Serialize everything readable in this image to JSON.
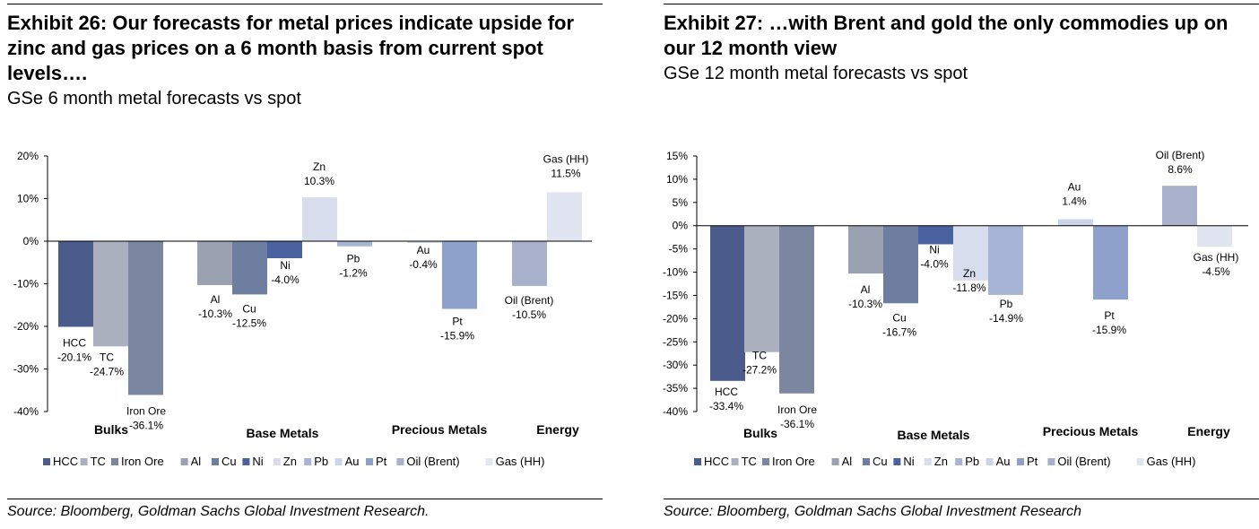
{
  "colors": {
    "HCC": "#4a5b8c",
    "TC": "#aab0be",
    "Iron Ore": "#7b86a0",
    "Al": "#9aa1b0",
    "Cu": "#6e7ea0",
    "Ni": "#4a62a0",
    "Zn": "#d8dded",
    "Pb": "#a8b4d6",
    "Au": "#ccd4ea",
    "Pt": "#8da1cb",
    "Oil (Brent)": "#a8b0cc",
    "Gas (HH)": "#e1e5f1"
  },
  "panels": [
    {
      "title": "Exhibit 26: Our forecasts for metal prices indicate upside for zinc and gas prices on a 6 month basis from current spot levels….",
      "subtitle": "GSe 6 month metal forecasts vs spot",
      "source": "Source: Bloomberg, Goldman Sachs Global Investment Research."
    },
    {
      "title": "Exhibit 27: …with Brent and gold the only commodies up on our 12 month view",
      "subtitle": "GSe 12 month metal forecasts vs spot",
      "source": "Source: Bloomberg, Goldman Sachs Global Investment Research"
    }
  ],
  "chart_data": [
    {
      "type": "bar",
      "ylim": [
        -40,
        20
      ],
      "yticks": [
        20,
        10,
        0,
        -10,
        -20,
        -30,
        -40
      ],
      "ytick_labels": [
        "20%",
        "10%",
        "0%",
        "-10%",
        "-20%",
        "-30%",
        "-40%"
      ],
      "groups": [
        "Bulks",
        "Base Metals",
        "Precious Metals",
        "Energy"
      ],
      "series": [
        {
          "name": "HCC",
          "group": "Bulks",
          "value": -20.1,
          "label": "HCC\n-20.1%"
        },
        {
          "name": "TC",
          "group": "Bulks",
          "value": -24.7,
          "label": "TC\n-24.7%"
        },
        {
          "name": "Iron Ore",
          "group": "Bulks",
          "value": -36.1,
          "label": "Iron Ore\n-36.1%"
        },
        {
          "name": "Al",
          "group": "Base Metals",
          "value": -10.3,
          "label": "Al\n-10.3%"
        },
        {
          "name": "Cu",
          "group": "Base Metals",
          "value": -12.5,
          "label": "Cu\n-12.5%"
        },
        {
          "name": "Ni",
          "group": "Base Metals",
          "value": -4.0,
          "label": "Ni\n-4.0%"
        },
        {
          "name": "Zn",
          "group": "Base Metals",
          "value": 10.3,
          "label": "Zn\n10.3%"
        },
        {
          "name": "Pb",
          "group": "Base Metals",
          "value": -1.2,
          "label": "Pb\n-1.2%"
        },
        {
          "name": "Au",
          "group": "Precious Metals",
          "value": -0.4,
          "label": "Au\n-0.4%"
        },
        {
          "name": "Pt",
          "group": "Precious Metals",
          "value": -15.9,
          "label": "Pt\n-15.9%"
        },
        {
          "name": "Oil (Brent)",
          "group": "Energy",
          "value": -10.5,
          "label": "Oil (Brent)\n-10.5%"
        },
        {
          "name": "Gas (HH)",
          "group": "Energy",
          "value": 11.5,
          "label": "Gas (HH)\n11.5%"
        }
      ],
      "legend": [
        "HCC",
        "TC",
        "Iron Ore",
        "Al",
        "Cu",
        "Ni",
        "Zn",
        "Pb",
        "Au",
        "Pt",
        "Oil (Brent)",
        "Gas (HH)"
      ]
    },
    {
      "type": "bar",
      "ylim": [
        -40,
        15
      ],
      "yticks": [
        15,
        10,
        5,
        0,
        -5,
        -10,
        -15,
        -20,
        -25,
        -30,
        -35,
        -40
      ],
      "ytick_labels": [
        "15%",
        "10%",
        "5%",
        "0%",
        "-5%",
        "-10%",
        "-15%",
        "-20%",
        "-25%",
        "-30%",
        "-35%",
        "-40%"
      ],
      "groups": [
        "Bulks",
        "Base Metals",
        "Precious Metals",
        "Energy"
      ],
      "series": [
        {
          "name": "HCC",
          "group": "Bulks",
          "value": -33.4,
          "label": "HCC\n-33.4%"
        },
        {
          "name": "TC",
          "group": "Bulks",
          "value": -27.2,
          "label": "TC\n-27.2%"
        },
        {
          "name": "Iron Ore",
          "group": "Bulks",
          "value": -36.1,
          "label": "Iron Ore\n-36.1%"
        },
        {
          "name": "Al",
          "group": "Base Metals",
          "value": -10.3,
          "label": "Al\n-10.3%"
        },
        {
          "name": "Cu",
          "group": "Base Metals",
          "value": -16.7,
          "label": "Cu\n-16.7%"
        },
        {
          "name": "Ni",
          "group": "Base Metals",
          "value": -4.0,
          "label": "Ni\n-4.0%"
        },
        {
          "name": "Zn",
          "group": "Base Metals",
          "value": -11.8,
          "label": "Zn\n-11.8%"
        },
        {
          "name": "Pb",
          "group": "Base Metals",
          "value": -14.9,
          "label": "Pb\n-14.9%"
        },
        {
          "name": "Au",
          "group": "Precious Metals",
          "value": 1.4,
          "label": "Au\n1.4%"
        },
        {
          "name": "Pt",
          "group": "Precious Metals",
          "value": -15.9,
          "label": "Pt\n-15.9%"
        },
        {
          "name": "Oil (Brent)",
          "group": "Energy",
          "value": 8.6,
          "label": "Oil (Brent)\n8.6%"
        },
        {
          "name": "Gas (HH)",
          "group": "Energy",
          "value": -4.5,
          "label": "Gas (HH)\n-4.5%"
        }
      ],
      "legend": [
        "HCC",
        "TC",
        "Iron Ore",
        "Al",
        "Cu",
        "Ni",
        "Zn",
        "Pb",
        "Au",
        "Pt",
        "Oil (Brent)",
        "Gas (HH)"
      ]
    }
  ]
}
